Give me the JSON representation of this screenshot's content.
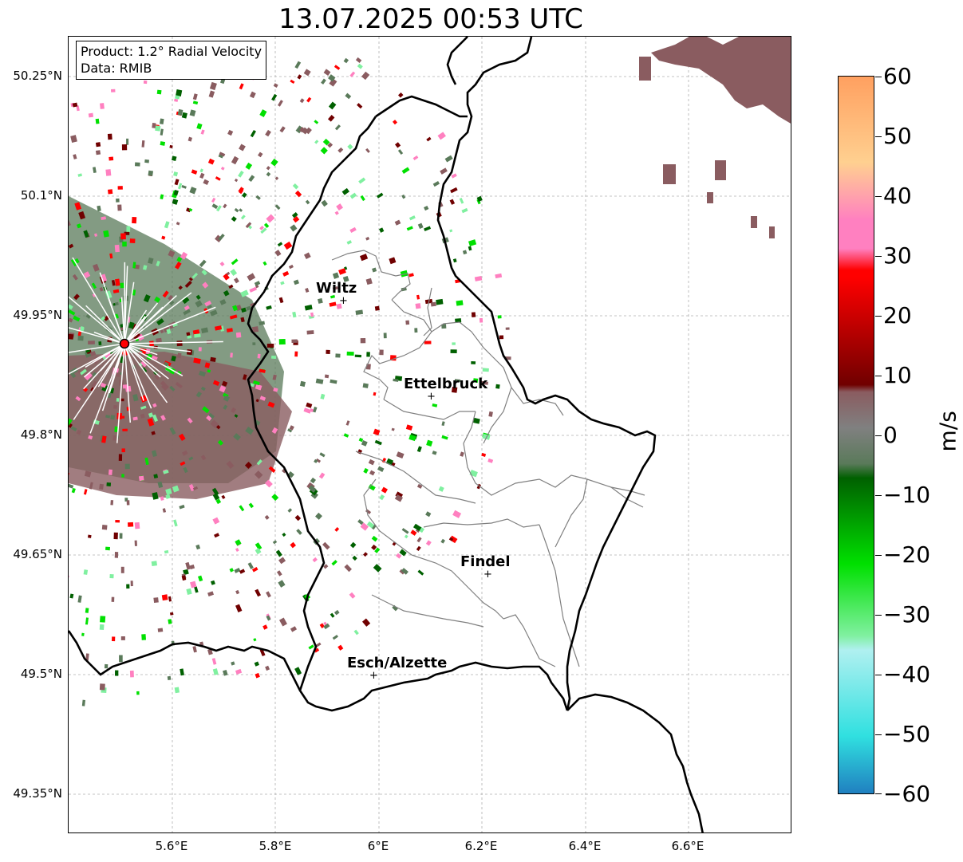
{
  "title": "13.07.2025 00:53 UTC",
  "info": {
    "product": "Product: 1.2° Radial Velocity",
    "data": "Data: RMIB"
  },
  "axes": {
    "lat_labels": [
      "50.25°N",
      "50.1°N",
      "49.95°N",
      "49.8°N",
      "49.65°N",
      "49.5°N",
      "49.35°N"
    ],
    "lon_labels": [
      "5.6°E",
      "5.8°E",
      "6°E",
      "6.2°E",
      "6.4°E",
      "6.6°E"
    ]
  },
  "cities": [
    {
      "name": "Wiltz"
    },
    {
      "name": "Ettelbruck"
    },
    {
      "name": "Findel"
    },
    {
      "name": "Esch/Alzette"
    }
  ],
  "colorbar": {
    "unit": "m/s",
    "ticks": [
      "60",
      "50",
      "40",
      "30",
      "20",
      "10",
      "0",
      "−10",
      "−20",
      "−30",
      "−40",
      "−50",
      "−60"
    ],
    "range": [
      -60,
      60
    ],
    "colors": {
      "orange": "#ffa060",
      "peach": "#ffd090",
      "pink": "#ff80c0",
      "red": "#ff0000",
      "dark_red": "#700000",
      "brown_grey": "#8a5c60",
      "grey": "#808080",
      "grey_green": "#5a7a5a",
      "dark_green": "#006000",
      "green": "#00e000",
      "light_green": "#80f0a0",
      "pale_cyan": "#b0f0f0",
      "cyan": "#30e0e0",
      "blue": "#2080c0"
    }
  },
  "radar_site_color": "#ff0000"
}
